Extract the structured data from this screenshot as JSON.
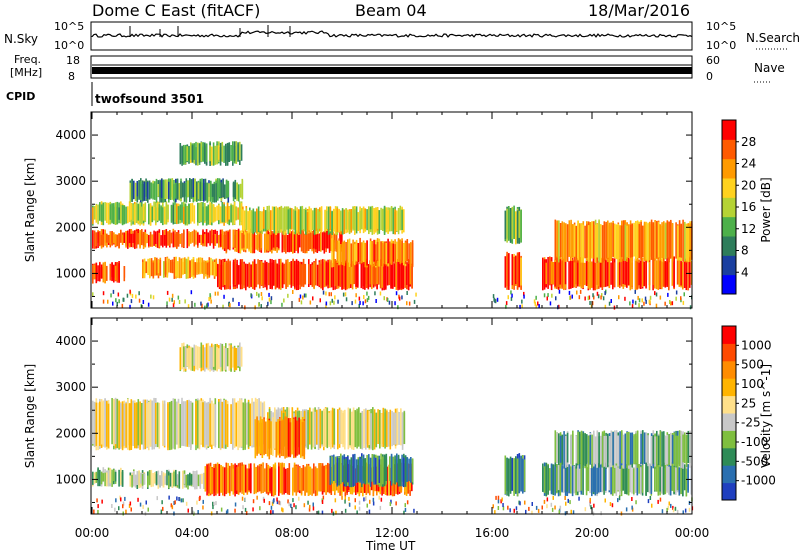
{
  "header": {
    "title": "Dome C East (fitACF)",
    "beam": "Beam 04",
    "date": "18/Mar/2016"
  },
  "strips": {
    "nsky_label": "N.Sky",
    "nsky_ticks": [
      "10^5",
      "10^0"
    ],
    "nsearch_label": "N.Search",
    "nsearch_ticks": [
      "10^5",
      "10^0"
    ],
    "freq_label": "Freq.",
    "freq_unit": "[MHz]",
    "freq_ticks": [
      "18",
      "8"
    ],
    "nave_label": "Nave",
    "nave_ticks": [
      "60",
      "0"
    ],
    "cpid_label": "CPID",
    "cpid_value": "twofsound 3501"
  },
  "colors": {
    "power_scale": [
      "#0000ff",
      "#1a3fa0",
      "#2e7d5b",
      "#4db04a",
      "#b5d335",
      "#ffd21f",
      "#ff9a00",
      "#ff5a00",
      "#ff0000"
    ],
    "velocity_scale": [
      "#ff0000",
      "#ff4a00",
      "#ff8c00",
      "#ffb400",
      "#ffe08a",
      "#c8c8c8",
      "#7fbf3f",
      "#2e8b57",
      "#2a6fb0",
      "#1f3fbf"
    ]
  },
  "chart_data": [
    {
      "type": "heatmap",
      "panel": "power",
      "ylabel": "Slant Range [km]",
      "xlabel": "Time UT",
      "x_ticks": [
        "00:00",
        "04:00",
        "08:00",
        "12:00",
        "16:00",
        "20:00",
        "00:00"
      ],
      "y_ticks": [
        "1000",
        "2000",
        "3000",
        "4000"
      ],
      "ylim": [
        250,
        4500
      ],
      "xlim_hours": [
        0,
        24
      ],
      "colorbar_label": "Power [dB]",
      "colorbar_ticks": [
        "4",
        "8",
        "12",
        "16",
        "20",
        "24",
        "28"
      ],
      "colorbar_range": [
        0,
        32
      ],
      "blobs": [
        {
          "t0": 0.0,
          "t1": 5.2,
          "r0": 1600,
          "r1": 1900,
          "level": 0.85
        },
        {
          "t0": 5.2,
          "t1": 10.0,
          "r0": 1500,
          "r1": 1900,
          "level": 0.8
        },
        {
          "t0": 0.0,
          "t1": 6.0,
          "r0": 2100,
          "r1": 2500,
          "level": 0.5
        },
        {
          "t0": 6.0,
          "t1": 12.5,
          "r0": 1900,
          "r1": 2400,
          "level": 0.55
        },
        {
          "t0": 0.0,
          "t1": 1.3,
          "r0": 850,
          "r1": 1200,
          "level": 0.9
        },
        {
          "t0": 2.0,
          "t1": 5.0,
          "r0": 950,
          "r1": 1300,
          "level": 0.7
        },
        {
          "t0": 5.0,
          "t1": 12.8,
          "r0": 700,
          "r1": 1250,
          "level": 0.9
        },
        {
          "t0": 9.5,
          "t1": 12.8,
          "r0": 1200,
          "r1": 1700,
          "level": 0.75
        },
        {
          "t0": 1.5,
          "t1": 6.0,
          "r0": 2600,
          "r1": 3000,
          "level": 0.35
        },
        {
          "t0": 3.5,
          "t1": 6.0,
          "r0": 3400,
          "r1": 3800,
          "level": 0.4
        },
        {
          "t0": 16.5,
          "t1": 17.2,
          "r0": 700,
          "r1": 1400,
          "level": 0.8
        },
        {
          "t0": 16.5,
          "t1": 17.2,
          "r0": 1700,
          "r1": 2400,
          "level": 0.4
        },
        {
          "t0": 18.0,
          "t1": 24.0,
          "r0": 700,
          "r1": 1300,
          "level": 0.85
        },
        {
          "t0": 18.5,
          "t1": 24.0,
          "r0": 1300,
          "r1": 2100,
          "level": 0.7
        }
      ]
    },
    {
      "type": "heatmap",
      "panel": "velocity",
      "ylabel": "Slant Range [km]",
      "xlabel": "Time UT",
      "x_ticks": [
        "00:00",
        "04:00",
        "08:00",
        "12:00",
        "16:00",
        "20:00",
        "00:00"
      ],
      "y_ticks": [
        "1000",
        "2000",
        "3000",
        "4000"
      ],
      "ylim": [
        250,
        4500
      ],
      "xlim_hours": [
        0,
        24
      ],
      "colorbar_label": "Velocity [m s^-1]",
      "colorbar_ticks": [
        "1000",
        "500",
        "100",
        "25",
        "-25",
        "-100",
        "-500",
        "-1000"
      ],
      "blobs": [
        {
          "t0": 0.0,
          "t1": 7.0,
          "r0": 1700,
          "r1": 2700,
          "level": 0.5
        },
        {
          "t0": 7.0,
          "t1": 12.5,
          "r0": 1700,
          "r1": 2500,
          "level": 0.5
        },
        {
          "t0": 6.5,
          "t1": 8.5,
          "r0": 1500,
          "r1": 2300,
          "level": 0.25
        },
        {
          "t0": 0.0,
          "t1": 1.2,
          "r0": 900,
          "r1": 1200,
          "level": 0.62
        },
        {
          "t0": 1.5,
          "t1": 4.5,
          "r0": 850,
          "r1": 1150,
          "level": 0.6
        },
        {
          "t0": 4.5,
          "t1": 12.8,
          "r0": 700,
          "r1": 1300,
          "level": 0.2
        },
        {
          "t0": 9.5,
          "t1": 12.8,
          "r0": 900,
          "r1": 1500,
          "level": 0.8
        },
        {
          "t0": 3.5,
          "t1": 6.0,
          "r0": 3400,
          "r1": 3900,
          "level": 0.5
        },
        {
          "t0": 16.5,
          "t1": 17.3,
          "r0": 700,
          "r1": 1500,
          "level": 0.8
        },
        {
          "t0": 18.0,
          "t1": 24.0,
          "r0": 700,
          "r1": 1300,
          "level": 0.72
        },
        {
          "t0": 18.5,
          "t1": 24.0,
          "r0": 1300,
          "r1": 2000,
          "level": 0.68
        }
      ]
    }
  ]
}
